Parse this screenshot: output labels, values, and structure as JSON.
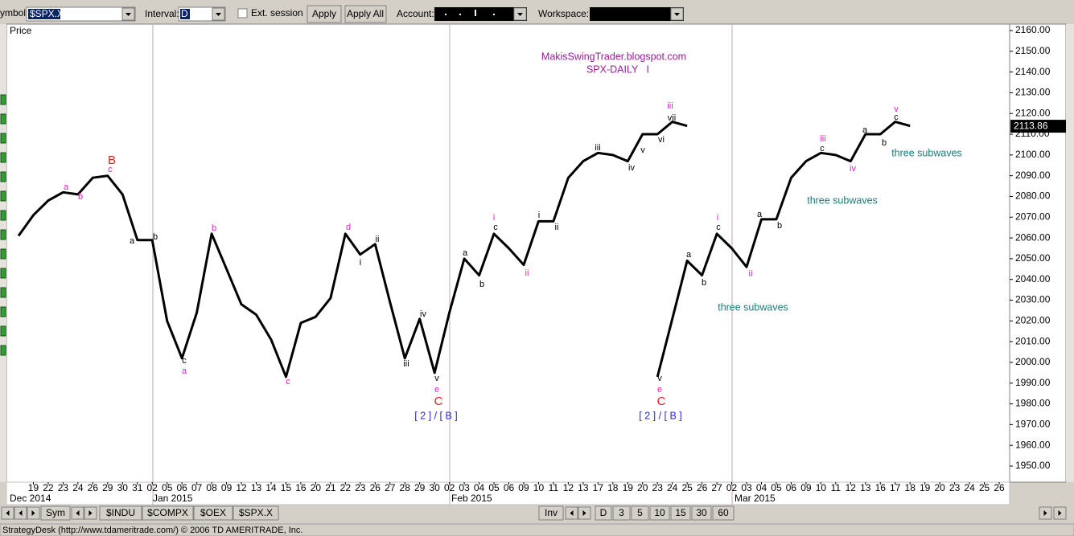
{
  "toolbar": {
    "symbol_label": "ymbol:",
    "symbol": "$SPX.X",
    "interval_label": "Interval:",
    "interval": "D",
    "ext_session": "Ext. session",
    "apply": "Apply",
    "apply_all": "Apply All",
    "account_label": "Account:",
    "workspace_label": "Workspace:"
  },
  "chart_data": {
    "type": "line",
    "y_axis_label": "Price",
    "categories": [
      null,
      "19",
      "22",
      "23",
      "24",
      "26",
      "29",
      "30",
      "31",
      "02",
      "05",
      "06",
      "07",
      "08",
      "09",
      "12",
      "13",
      "14",
      "15",
      "16",
      "20",
      "21",
      "22",
      "23",
      "26",
      "27",
      "28",
      "29",
      "30",
      "02",
      "03",
      "04",
      "05",
      "06",
      "09",
      "10",
      "11",
      "12",
      "13",
      "17",
      "18",
      "19",
      "20",
      "23",
      "24",
      "25",
      "26",
      "27",
      "02",
      "03",
      "04",
      "05",
      "06",
      "09",
      "10",
      "11",
      "12",
      "13",
      "16",
      "17",
      "18",
      "19",
      "20",
      "23",
      "24",
      "25",
      "26"
    ],
    "month_labels": [
      "Dec 2014",
      "Jan 2015",
      "Feb 2015",
      "Mar 2015"
    ],
    "series": [
      {
        "color": "#000000",
        "values": [
          2061,
          2071,
          2078,
          2082,
          2081,
          2089,
          2090,
          2081,
          2059,
          2059,
          2020,
          2002,
          2024,
          2062,
          2045,
          2028,
          2023,
          2011,
          1993,
          2019,
          2022,
          2031,
          2062,
          2052,
          2057,
          2029,
          2002,
          2021,
          1995,
          2024,
          2050,
          2042,
          2062,
          2055,
          2047,
          2068,
          2068,
          2089,
          2097,
          2101,
          2100,
          2097,
          2110,
          2110,
          2116,
          2114,
          null,
          null,
          null,
          null,
          null,
          null,
          null,
          null,
          null,
          null,
          null,
          null,
          null,
          null,
          null,
          null,
          null,
          null,
          null,
          null,
          null
        ]
      },
      {
        "color": "#000000",
        "values": [
          null,
          null,
          null,
          null,
          null,
          null,
          null,
          null,
          null,
          null,
          null,
          null,
          null,
          null,
          null,
          null,
          null,
          null,
          null,
          null,
          null,
          null,
          null,
          null,
          null,
          null,
          null,
          null,
          null,
          null,
          null,
          null,
          null,
          null,
          null,
          null,
          null,
          null,
          null,
          null,
          null,
          null,
          null,
          1993,
          2021,
          2049,
          2042,
          2062,
          2055,
          2046,
          2069,
          2069,
          2089,
          2097,
          2101,
          2100,
          2097,
          2110,
          2110,
          2116,
          2114,
          null,
          null,
          null,
          null,
          null,
          null
        ]
      }
    ],
    "ylim": [
      1940,
      2164
    ],
    "yticks": [
      {
        "value": 2160,
        "label": "2160.00"
      },
      {
        "value": 2150,
        "label": "2150.00"
      },
      {
        "value": 2140,
        "label": "2140.00"
      },
      {
        "value": 2130,
        "label": "2130.00"
      },
      {
        "value": 2120,
        "label": "2120.00"
      },
      {
        "value": 2110,
        "label": "2110.00"
      },
      {
        "value": 2100,
        "label": "2100.00"
      },
      {
        "value": 2090,
        "label": "2090.00"
      },
      {
        "value": 2080,
        "label": "2080.00"
      },
      {
        "value": 2070,
        "label": "2070.00"
      },
      {
        "value": 2060,
        "label": "2060.00"
      },
      {
        "value": 2050,
        "label": "2050.00"
      },
      {
        "value": 2040,
        "label": "2040.00"
      },
      {
        "value": 2030,
        "label": "2030.00"
      },
      {
        "value": 2020,
        "label": "2020.00"
      },
      {
        "value": 2010,
        "label": "2010.00"
      },
      {
        "value": 2000,
        "label": "2000.00"
      },
      {
        "value": 1990,
        "label": "1990.00"
      },
      {
        "value": 1980,
        "label": "1980.00"
      },
      {
        "value": 1970,
        "label": "1970.00"
      },
      {
        "value": 1960,
        "label": "1960.00"
      },
      {
        "value": 1950,
        "label": "1950.00"
      }
    ],
    "last_price": 2113.86,
    "annotations": [
      {
        "text": "MakisSwingTrader.blogspot.com",
        "color": "#9b1b9b"
      },
      {
        "text": "SPX-DAILY   I",
        "color": "#9b1b9b"
      },
      {
        "text": "B",
        "color": "#e0201c"
      },
      {
        "text": "c",
        "color": "#e020c8"
      },
      {
        "text": "a",
        "color": "#e020c8"
      },
      {
        "text": "b",
        "color": "#e020c8"
      },
      {
        "text": "a",
        "color": "#000000"
      },
      {
        "text": "b",
        "color": "#000000"
      },
      {
        "text": "c",
        "color": "#000000"
      },
      {
        "text": "a",
        "color": "#e020c8"
      },
      {
        "text": "b",
        "color": "#e020c8"
      },
      {
        "text": "c",
        "color": "#e020c8"
      },
      {
        "text": "d",
        "color": "#e020c8"
      },
      {
        "text": "i",
        "color": "#000000"
      },
      {
        "text": "ii",
        "color": "#000000"
      },
      {
        "text": "iii",
        "color": "#000000"
      },
      {
        "text": "iv",
        "color": "#000000"
      },
      {
        "text": "v",
        "color": "#000000"
      },
      {
        "text": "e",
        "color": "#e020c8"
      },
      {
        "text": "C",
        "color": "#e0201c"
      },
      {
        "text": "a",
        "color": "#000000"
      },
      {
        "text": "b",
        "color": "#000000"
      },
      {
        "text": "i",
        "color": "#e020c8"
      },
      {
        "text": "c",
        "color": "#000000"
      },
      {
        "text": "ii",
        "color": "#e020c8"
      },
      {
        "text": "i",
        "color": "#000000"
      },
      {
        "text": "ii",
        "color": "#000000"
      },
      {
        "text": "iii",
        "color": "#000000"
      },
      {
        "text": "iv",
        "color": "#000000"
      },
      {
        "text": "v",
        "color": "#000000"
      },
      {
        "text": "vi",
        "color": "#000000"
      },
      {
        "text": "vii",
        "color": "#000000"
      },
      {
        "text": "iii",
        "color": "#e020c8"
      },
      {
        "text": "v",
        "color": "#000000"
      },
      {
        "text": "e",
        "color": "#e020c8"
      },
      {
        "text": "C",
        "color": "#e0201c"
      },
      {
        "text": "a",
        "color": "#000000"
      },
      {
        "text": "b",
        "color": "#000000"
      },
      {
        "text": "i",
        "color": "#e020c8"
      },
      {
        "text": "c",
        "color": "#000000"
      },
      {
        "text": "ii",
        "color": "#e020c8"
      },
      {
        "text": "a",
        "color": "#000000"
      },
      {
        "text": "b",
        "color": "#000000"
      },
      {
        "text": "iii",
        "color": "#e020c8"
      },
      {
        "text": "c",
        "color": "#000000"
      },
      {
        "text": "iv",
        "color": "#e020c8"
      },
      {
        "text": "a",
        "color": "#000000"
      },
      {
        "text": "b",
        "color": "#000000"
      },
      {
        "text": "v",
        "color": "#e020c8"
      },
      {
        "text": "c",
        "color": "#000000"
      },
      {
        "text": "three subwaves",
        "color": "#1b7b7b"
      },
      {
        "text": "three subwaves",
        "color": "#1b7b7b"
      },
      {
        "text": "three subwaves",
        "color": "#1b7b7b"
      },
      {
        "text": "[ 2 ] / [ B ]",
        "color": "#2a2ad0"
      },
      {
        "text": "[ 2 ] / [ B ]",
        "color": "#2a2ad0"
      }
    ]
  },
  "tabs": {
    "sym": "Sym",
    "symbols": [
      "$INDU",
      "$COMPX",
      "$OEX",
      "$SPX.X"
    ],
    "inv": "Inv",
    "intervals": [
      "D",
      "3",
      "5",
      "10",
      "15",
      "30",
      "60"
    ]
  },
  "status": "StrategyDesk (http://www.tdameritrade.com/) © 2006 TD AMERITRADE, Inc."
}
